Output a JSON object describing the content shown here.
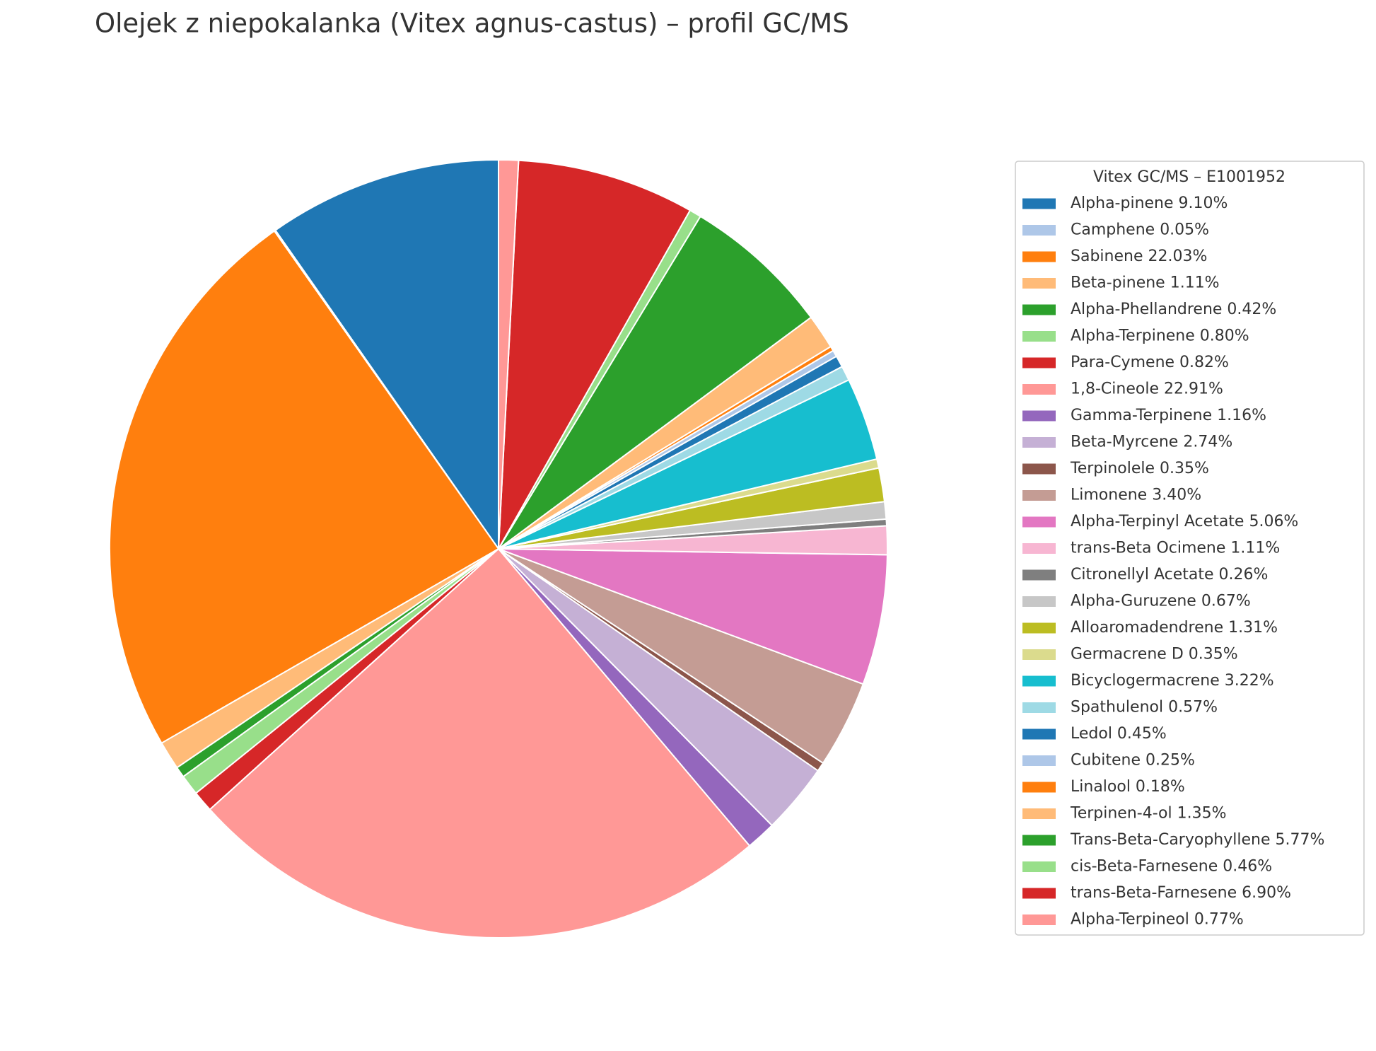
{
  "chart_data": {
    "type": "pie",
    "title": "Olejek z niepokalanka (Vitex agnus-castus) – profil GC/MS",
    "legend_title": "Vitex GC/MS – E1001952",
    "legend": "right",
    "start_angle": 90,
    "categories": [
      "Alpha-pinene 9.10%",
      "Camphene 0.05%",
      "Sabinene 22.03%",
      "Beta-pinene 1.11%",
      "Alpha-Phellandrene 0.42%",
      "Alpha-Terpinene 0.80%",
      "Para-Cymene 0.82%",
      "1,8-Cineole 22.91%",
      "Gamma-Terpinene 1.16%",
      "Beta-Myrcene 2.74%",
      "Terpinolele 0.35%",
      "Limonene 3.40%",
      "Alpha-Terpinyl Acetate 5.06%",
      "trans-Beta Ocimene 1.11%",
      "Citronellyl Acetate 0.26%",
      "Alpha-Guruzene 0.67%",
      "Alloaromadendrene 1.31%",
      "Germacrene D 0.35%",
      "Bicyclogermacrene 3.22%",
      "Spathulenol 0.57%",
      "Ledol 0.45%",
      "Cubitene 0.25%",
      "Linalool 0.18%",
      "Terpinen-4-ol 1.35%",
      "Trans-Beta-Caryophyllene 5.77%",
      "cis-Beta-Farnesene 0.46%",
      "trans-Beta-Farnesene 6.90%",
      "Alpha-Terpineol 0.77%"
    ],
    "values": [
      9.1,
      0.05,
      22.03,
      1.11,
      0.42,
      0.8,
      0.82,
      22.91,
      1.16,
      2.74,
      0.35,
      3.4,
      5.06,
      1.11,
      0.26,
      0.67,
      1.31,
      0.35,
      3.22,
      0.57,
      0.45,
      0.25,
      0.18,
      1.35,
      5.77,
      0.46,
      6.9,
      0.77
    ],
    "colors": [
      "#1f77b4",
      "#aec7e8",
      "#ff7f0e",
      "#ffbb78",
      "#2ca02c",
      "#98df8a",
      "#d62728",
      "#ff9896",
      "#9467bd",
      "#c5b0d5",
      "#8c564b",
      "#c49c94",
      "#e377c2",
      "#f7b6d2",
      "#7f7f7f",
      "#c7c7c7",
      "#bcbd22",
      "#dbdb8d",
      "#17becf",
      "#9edae5",
      "#1f77b4",
      "#aec7e8",
      "#ff7f0e",
      "#ffbb78",
      "#2ca02c",
      "#98df8a",
      "#d62728",
      "#ff9896"
    ]
  }
}
